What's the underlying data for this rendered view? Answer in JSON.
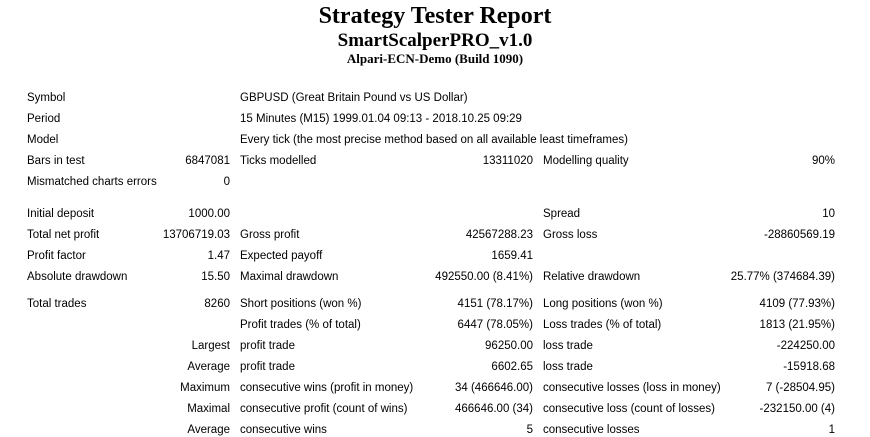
{
  "header": {
    "title": "Strategy Tester Report",
    "subtitle": "SmartScalperPRO_v1.0",
    "server": "Alpari-ECN-Demo (Build 1090)"
  },
  "colors": {
    "background": "#ffffff",
    "text": "#000000"
  },
  "rows": [
    {
      "c1": "Symbol",
      "wide": "GBPUSD (Great Britain Pound vs US Dollar)"
    },
    {
      "c1": "Period",
      "wide": "15 Minutes (M15) 1999.01.04 09:13 - 2018.10.25 09:29"
    },
    {
      "c1": "Model",
      "wide": "Every tick (the most precise method based on all available least timeframes)"
    },
    {
      "c1": "Bars in test",
      "c2": "6847081",
      "c3": "Ticks modelled",
      "c4": "13311020",
      "c5": "Modelling quality",
      "c6": "90%"
    },
    {
      "c1": "Mismatched charts errors",
      "c2": "0",
      "c3": "",
      "c4": "",
      "c5": "",
      "c6": ""
    },
    {
      "c1": "Initial deposit",
      "c2": "1000.00",
      "c3": "",
      "c4": "",
      "c5": "Spread",
      "c6": "10"
    },
    {
      "c1": "Total net profit",
      "c2": "13706719.03",
      "c3": "Gross profit",
      "c4": "42567288.23",
      "c5": "Gross loss",
      "c6": "-28860569.19"
    },
    {
      "c1": "Profit factor",
      "c2": "1.47",
      "c3": "Expected payoff",
      "c4": "1659.41",
      "c5": "",
      "c6": ""
    },
    {
      "c1": "Absolute drawdown",
      "c2": "15.50",
      "c3": "Maximal drawdown",
      "c4": "492550.00 (8.41%)",
      "c5": "Relative drawdown",
      "c6": "25.77% (374684.39)"
    },
    {
      "c1": "Total trades",
      "c2": "8260",
      "c3": "Short positions (won %)",
      "c4": "4151 (78.17%)",
      "c5": "Long positions (won %)",
      "c6": "4109 (77.93%)"
    },
    {
      "c1": "",
      "c2": "",
      "c3": "Profit trades (% of total)",
      "c4": "6447 (78.05%)",
      "c5": "Loss trades (% of total)",
      "c6": "1813 (21.95%)"
    },
    {
      "c1": "",
      "c2": "Largest",
      "c3": "profit trade",
      "c4": "96250.00",
      "c5": "loss trade",
      "c6": "-224250.00"
    },
    {
      "c1": "",
      "c2": "Average",
      "c3": "profit trade",
      "c4": "6602.65",
      "c5": "loss trade",
      "c6": "-15918.68"
    },
    {
      "c1": "",
      "c2": "Maximum",
      "c3": "consecutive wins (profit in money)",
      "c4": "34 (466646.00)",
      "c5": "consecutive losses (loss in money)",
      "c6": "7 (-28504.95)"
    },
    {
      "c1": "",
      "c2": "Maximal",
      "c3": "consecutive profit (count of wins)",
      "c4": "466646.00 (34)",
      "c5": "consecutive loss (count of losses)",
      "c6": "-232150.00 (4)"
    },
    {
      "c1": "",
      "c2": "Average",
      "c3": "consecutive wins",
      "c4": "5",
      "c5": "consecutive losses",
      "c6": "1"
    }
  ]
}
